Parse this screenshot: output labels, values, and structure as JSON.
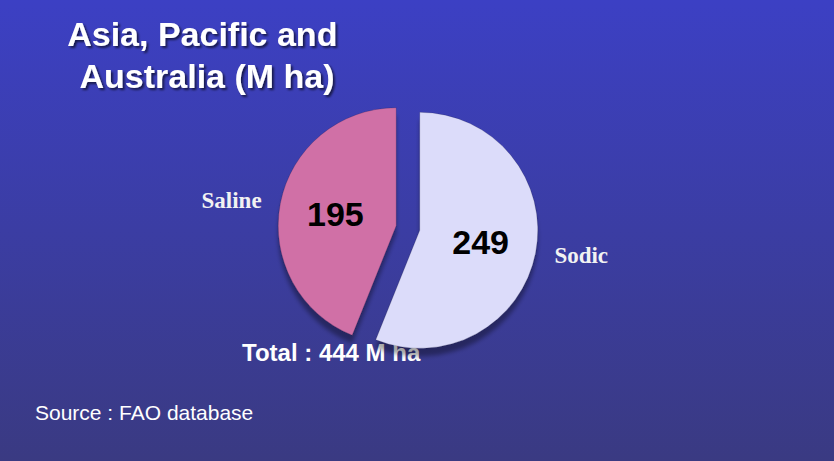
{
  "chart_data": {
    "type": "pie",
    "title": "Asia, Pacific and Australia (M ha)",
    "categories": [
      "Saline",
      "Sodic"
    ],
    "values": [
      195,
      249
    ],
    "colors": [
      "#d06fa6",
      "#dcdcfa"
    ],
    "data_labels": true,
    "annotations": [
      "Total : 444 M ha",
      "Source : FAO database"
    ]
  }
}
